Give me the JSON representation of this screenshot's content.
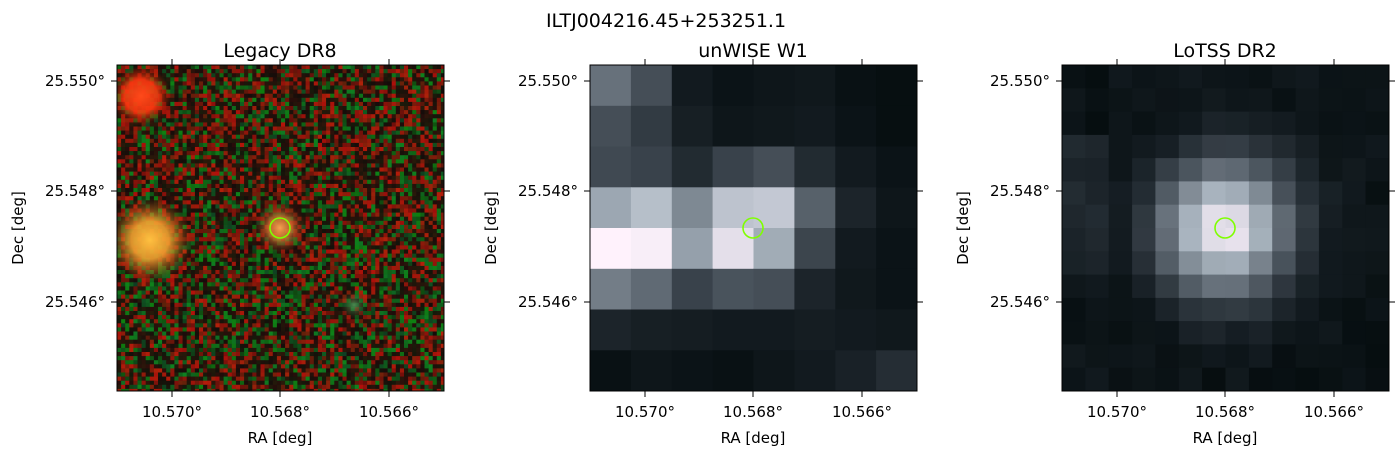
{
  "figure": {
    "suptitle": "ILTJ004216.45+253251.1"
  },
  "panels": [
    {
      "id": "legacy",
      "title": "Legacy DR8",
      "xlabel": "RA [deg]",
      "ylabel": "Dec [deg]",
      "xticks": [
        "10.570°",
        "10.568°",
        "10.566°"
      ],
      "yticks": [
        "25.550°",
        "25.548°",
        "25.546°"
      ],
      "image_kind": "optical color composite (noisy red/green speckle background)",
      "sources": [
        {
          "kind": "bright red star",
          "color": "#ff4a1a"
        },
        {
          "kind": "bright orange galaxy",
          "color": "#ffb23a"
        },
        {
          "kind": "target orange source",
          "color": "#f08a3a"
        },
        {
          "kind": "faint green smudge",
          "color": "#4a8a4a"
        }
      ]
    },
    {
      "id": "unwise",
      "title": "unWISE W1",
      "xlabel": "RA [deg]",
      "ylabel": "Dec [deg]",
      "xticks": [
        "10.570°",
        "10.568°",
        "10.566°"
      ],
      "yticks": [
        "25.550°",
        "25.548°",
        "25.546°"
      ],
      "image_kind": "infrared pixelated grayscale (bone colormap)"
    },
    {
      "id": "lotss",
      "title": "LoTSS DR2",
      "xlabel": "RA [deg]",
      "ylabel": "Dec [deg]",
      "xticks": [
        "10.570°",
        "10.568°",
        "10.566°"
      ],
      "yticks": [
        "25.550°",
        "25.548°",
        "25.546°"
      ],
      "image_kind": "radio pixelated grayscale (bone colormap)"
    }
  ],
  "marker": {
    "shape": "circle",
    "color": "#7fff00"
  }
}
